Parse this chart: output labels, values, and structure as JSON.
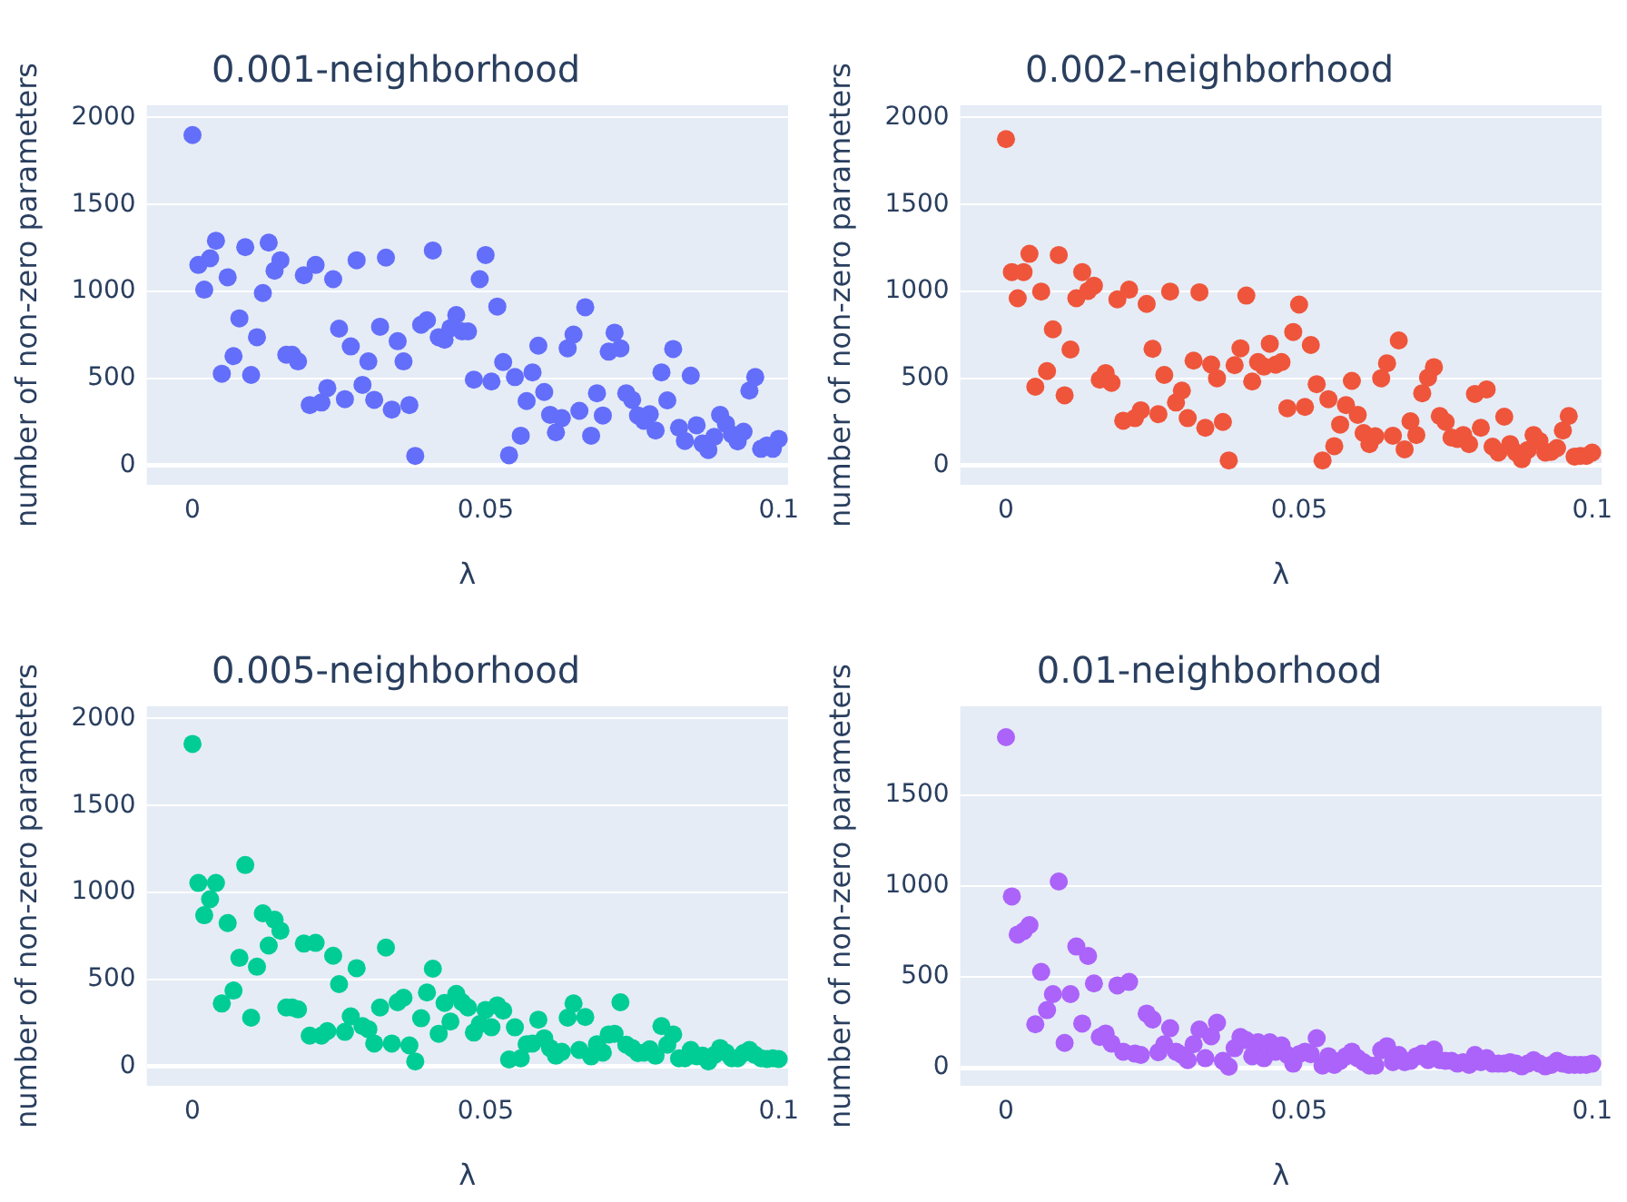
{
  "chart_data": [
    {
      "type": "scatter",
      "title": "0.001-neighborhood",
      "xlabel": "λ",
      "ylabel": "number of non-zero parameters",
      "color": "#636efa",
      "marker": "circle",
      "grid": "y",
      "xlim": [
        -0.0078,
        0.1016
      ],
      "ylim": [
        -110,
        2070
      ],
      "xticks": [
        0,
        0.05,
        0.1
      ],
      "yticks": [
        0,
        500,
        1000,
        1500,
        2000
      ],
      "x": [
        0,
        0.001,
        0.002,
        0.003,
        0.004,
        0.005,
        0.006,
        0.007,
        0.008,
        0.009,
        0.01,
        0.011,
        0.012,
        0.013,
        0.014,
        0.015,
        0.016,
        0.017,
        0.018,
        0.019,
        0.02,
        0.021,
        0.022,
        0.023,
        0.024,
        0.025,
        0.026,
        0.027,
        0.028,
        0.029,
        0.03,
        0.031,
        0.032,
        0.033,
        0.034,
        0.035,
        0.036,
        0.037,
        0.038,
        0.039,
        0.04,
        0.041,
        0.042,
        0.043,
        0.044,
        0.045,
        0.046,
        0.047,
        0.048,
        0.049,
        0.05,
        0.051,
        0.052,
        0.053,
        0.054,
        0.055,
        0.056,
        0.057,
        0.058,
        0.059,
        0.06,
        0.061,
        0.062,
        0.063,
        0.064,
        0.065,
        0.066,
        0.067,
        0.068,
        0.069,
        0.07,
        0.071,
        0.072,
        0.073,
        0.074,
        0.075,
        0.076,
        0.077,
        0.078,
        0.079,
        0.08,
        0.081,
        0.082,
        0.083,
        0.084,
        0.085,
        0.086,
        0.087,
        0.088,
        0.089,
        0.09,
        0.091,
        0.092,
        0.093,
        0.094,
        0.095,
        0.096,
        0.097,
        0.098,
        0.099,
        0.1
      ],
      "values": [
        1899,
        1153,
        1011,
        1191,
        1292,
        528,
        1082,
        629,
        846,
        1255,
        521,
        738,
        992,
        1281,
        1120,
        1180,
        637,
        637,
        599,
        1094,
        348,
        1153,
        363,
        446,
        1071,
        787,
        382,
        685,
        1180,
        464,
        599,
        378,
        798,
        1195,
        322,
        715,
        599,
        348,
        56,
        809,
        835,
        1236,
        738,
        723,
        790,
        865,
        771,
        771,
        494,
        1071,
        1210,
        483,
        914,
        595,
        60,
        509,
        172,
        371,
        536,
        689,
        423,
        292,
        191,
        273,
        674,
        753,
        315,
        910,
        172,
        416,
        288,
        655,
        764,
        674,
        416,
        378,
        288,
        258,
        296,
        202,
        536,
        375,
        670,
        217,
        142,
        517,
        232,
        127,
        90,
        165,
        292,
        240,
        180,
        139,
        195,
        431,
        509,
        97,
        116,
        97,
        154
      ]
    },
    {
      "type": "scatter",
      "title": "0.002-neighborhood",
      "xlabel": "λ",
      "ylabel": "number of non-zero parameters",
      "color": "#ef553b",
      "marker": "circle",
      "grid": "y",
      "xlim": [
        -0.0078,
        0.1016
      ],
      "ylim": [
        -110,
        2070
      ],
      "xticks": [
        0,
        0.05,
        0.1
      ],
      "yticks": [
        0,
        500,
        1000,
        1500,
        2000
      ],
      "x": [
        0,
        0.001,
        0.002,
        0.003,
        0.004,
        0.005,
        0.006,
        0.007,
        0.008,
        0.009,
        0.01,
        0.011,
        0.012,
        0.013,
        0.014,
        0.015,
        0.016,
        0.017,
        0.018,
        0.019,
        0.02,
        0.021,
        0.022,
        0.023,
        0.024,
        0.025,
        0.026,
        0.027,
        0.028,
        0.029,
        0.03,
        0.031,
        0.032,
        0.033,
        0.034,
        0.035,
        0.036,
        0.037,
        0.038,
        0.039,
        0.04,
        0.041,
        0.042,
        0.043,
        0.044,
        0.045,
        0.046,
        0.047,
        0.048,
        0.049,
        0.05,
        0.051,
        0.052,
        0.053,
        0.054,
        0.055,
        0.056,
        0.057,
        0.058,
        0.059,
        0.06,
        0.061,
        0.062,
        0.063,
        0.064,
        0.065,
        0.066,
        0.067,
        0.068,
        0.069,
        0.07,
        0.071,
        0.072,
        0.073,
        0.074,
        0.075,
        0.076,
        0.077,
        0.078,
        0.079,
        0.08,
        0.081,
        0.082,
        0.083,
        0.084,
        0.085,
        0.086,
        0.087,
        0.088,
        0.089,
        0.09,
        0.091,
        0.092,
        0.093,
        0.094,
        0.095,
        0.096,
        0.097,
        0.098,
        0.099,
        0.1
      ],
      "values": [
        1876,
        1112,
        962,
        1112,
        1217,
        453,
        1000,
        543,
        783,
        1210,
        404,
        667,
        962,
        1112,
        1004,
        1034,
        494,
        532,
        476,
        955,
        258,
        1011,
        273,
        318,
        929,
        671,
        296,
        521,
        1000,
        363,
        431,
        273,
        603,
        996,
        217,
        581,
        502,
        251,
        30,
        577,
        674,
        977,
        483,
        595,
        569,
        700,
        580,
        595,
        330,
        768,
        925,
        337,
        693,
        468,
        30,
        382,
        112,
        236,
        348,
        487,
        292,
        187,
        124,
        169,
        502,
        588,
        172,
        719,
        94,
        255,
        176,
        416,
        506,
        566,
        285,
        251,
        161,
        154,
        176,
        124,
        412,
        217,
        438,
        109,
        75,
        281,
        124,
        75,
        37,
        90,
        176,
        142,
        75,
        79,
        101,
        202,
        285,
        52,
        56,
        56,
        75
      ]
    },
    {
      "type": "scatter",
      "title": "0.005-neighborhood",
      "xlabel": "λ",
      "ylabel": "number of non-zero parameters",
      "color": "#00cc96",
      "marker": "circle",
      "grid": "y",
      "xlim": [
        -0.0078,
        0.1016
      ],
      "ylim": [
        -110,
        2070
      ],
      "xticks": [
        0,
        0.05,
        0.1
      ],
      "yticks": [
        0,
        500,
        1000,
        1500,
        2000
      ],
      "x": [
        0,
        0.001,
        0.002,
        0.003,
        0.004,
        0.005,
        0.006,
        0.007,
        0.008,
        0.009,
        0.01,
        0.011,
        0.012,
        0.013,
        0.014,
        0.015,
        0.016,
        0.017,
        0.018,
        0.019,
        0.02,
        0.021,
        0.022,
        0.023,
        0.024,
        0.025,
        0.026,
        0.027,
        0.028,
        0.029,
        0.03,
        0.031,
        0.032,
        0.033,
        0.034,
        0.035,
        0.036,
        0.037,
        0.038,
        0.039,
        0.04,
        0.041,
        0.042,
        0.043,
        0.044,
        0.045,
        0.046,
        0.047,
        0.048,
        0.049,
        0.05,
        0.051,
        0.052,
        0.053,
        0.054,
        0.055,
        0.056,
        0.057,
        0.058,
        0.059,
        0.06,
        0.061,
        0.062,
        0.063,
        0.064,
        0.065,
        0.066,
        0.067,
        0.068,
        0.069,
        0.07,
        0.071,
        0.072,
        0.073,
        0.074,
        0.075,
        0.076,
        0.077,
        0.078,
        0.079,
        0.08,
        0.081,
        0.082,
        0.083,
        0.084,
        0.085,
        0.086,
        0.087,
        0.088,
        0.089,
        0.09,
        0.091,
        0.092,
        0.093,
        0.094,
        0.095,
        0.096,
        0.097,
        0.098,
        0.099,
        0.1
      ],
      "values": [
        1854,
        1055,
        870,
        962,
        1055,
        363,
        825,
        437,
        625,
        1158,
        281,
        574,
        881,
        696,
        844,
        781,
        340,
        340,
        329,
        707,
        178,
        711,
        178,
        204,
        637,
        474,
        200,
        289,
        566,
        233,
        215,
        133,
        340,
        684,
        133,
        370,
        396,
        122,
        30,
        278,
        426,
        563,
        189,
        366,
        259,
        418,
        370,
        340,
        196,
        244,
        326,
        226,
        352,
        322,
        41,
        226,
        48,
        129,
        133,
        270,
        163,
        107,
        63,
        85,
        281,
        363,
        96,
        285,
        59,
        129,
        81,
        185,
        189,
        370,
        126,
        107,
        78,
        81,
        100,
        63,
        233,
        126,
        185,
        48,
        48,
        96,
        59,
        63,
        30,
        67,
        107,
        81,
        48,
        48,
        78,
        96,
        67,
        48,
        44,
        48,
        44
      ]
    },
    {
      "type": "scatter",
      "title": "0.01-neighborhood",
      "xlabel": "λ",
      "ylabel": "number of non-zero parameters",
      "color": "#ab63fa",
      "marker": "circle",
      "grid": "y",
      "xlim": [
        -0.0078,
        0.1016
      ],
      "ylim": [
        -100,
        1990
      ],
      "xticks": [
        0,
        0.05,
        0.1
      ],
      "yticks": [
        0,
        500,
        1000,
        1500
      ],
      "x": [
        0,
        0.001,
        0.002,
        0.003,
        0.004,
        0.005,
        0.006,
        0.007,
        0.008,
        0.009,
        0.01,
        0.011,
        0.012,
        0.013,
        0.014,
        0.015,
        0.016,
        0.017,
        0.018,
        0.019,
        0.02,
        0.021,
        0.022,
        0.023,
        0.024,
        0.025,
        0.026,
        0.027,
        0.028,
        0.029,
        0.03,
        0.031,
        0.032,
        0.033,
        0.034,
        0.035,
        0.036,
        0.037,
        0.038,
        0.039,
        0.04,
        0.041,
        0.042,
        0.043,
        0.044,
        0.045,
        0.046,
        0.047,
        0.048,
        0.049,
        0.05,
        0.051,
        0.052,
        0.053,
        0.054,
        0.055,
        0.056,
        0.057,
        0.058,
        0.059,
        0.06,
        0.061,
        0.062,
        0.063,
        0.064,
        0.065,
        0.066,
        0.067,
        0.068,
        0.069,
        0.07,
        0.071,
        0.072,
        0.073,
        0.074,
        0.075,
        0.076,
        0.077,
        0.078,
        0.079,
        0.08,
        0.081,
        0.082,
        0.083,
        0.084,
        0.085,
        0.086,
        0.087,
        0.088,
        0.089,
        0.09,
        0.091,
        0.092,
        0.093,
        0.094,
        0.095,
        0.096,
        0.097,
        0.098,
        0.099,
        0.1
      ],
      "values": [
        1820,
        943,
        733,
        751,
        785,
        239,
        527,
        317,
        405,
        1025,
        136,
        405,
        667,
        243,
        615,
        464,
        169,
        188,
        133,
        453,
        88,
        472,
        77,
        70,
        298,
        265,
        85,
        129,
        217,
        88,
        70,
        41,
        129,
        210,
        52,
        173,
        247,
        37,
        5,
        107,
        169,
        151,
        63,
        140,
        52,
        140,
        88,
        122,
        70,
        22,
        74,
        88,
        74,
        162,
        11,
        63,
        15,
        37,
        63,
        88,
        52,
        30,
        11,
        11,
        96,
        118,
        30,
        70,
        30,
        37,
        63,
        77,
        41,
        100,
        41,
        37,
        37,
        22,
        30,
        15,
        70,
        30,
        52,
        22,
        22,
        22,
        30,
        22,
        7,
        22,
        41,
        22,
        7,
        15,
        37,
        22,
        15,
        15,
        15,
        15,
        22
      ]
    }
  ]
}
